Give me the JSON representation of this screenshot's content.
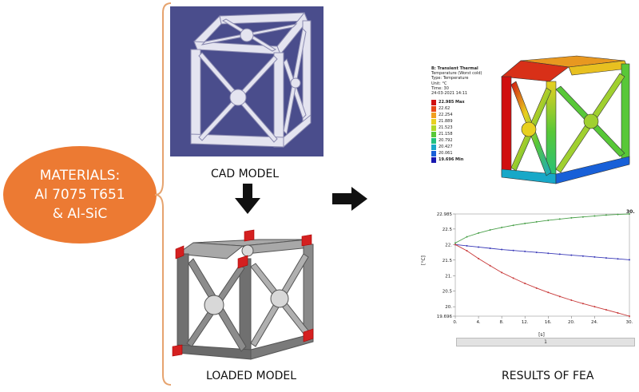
{
  "materials": {
    "line1": "MATERIALS:",
    "line2": "Al 7075 T651",
    "line3": "& Al-SiC"
  },
  "cad_model": {
    "caption": "CAD MODEL"
  },
  "loaded_model": {
    "caption": "LOADED MODEL"
  },
  "results": {
    "caption": "RESULTS OF FEA"
  },
  "colors": {
    "orange": "#ec7a33",
    "brace": "#e6a36e",
    "cad_bg": "#4a4d8c"
  },
  "thermal": {
    "title": "B: Transient Thermal",
    "subtitle": "Temperature (Worst cold)",
    "type": "Type: Temperature",
    "unit": "Unit: °C",
    "time": "Time: 30",
    "date": "24-03-2021 14:11",
    "legend": [
      {
        "label": "22.985 Max",
        "color": "#d01010"
      },
      {
        "label": "22.62",
        "color": "#e84818"
      },
      {
        "label": "22.254",
        "color": "#f0a020"
      },
      {
        "label": "21.889",
        "color": "#e8d020"
      },
      {
        "label": "21.523",
        "color": "#b0d828"
      },
      {
        "label": "21.158",
        "color": "#58c838"
      },
      {
        "label": "20.792",
        "color": "#20c080"
      },
      {
        "label": "20.427",
        "color": "#18a8c8"
      },
      {
        "label": "20.061",
        "color": "#1860d8"
      },
      {
        "label": "19.696 Min",
        "color": "#1818b0"
      }
    ]
  },
  "chart_data": {
    "type": "line",
    "ylabel": "[°C]",
    "xlabel": "[s]",
    "xlim": [
      0,
      30
    ],
    "ylim": [
      19.696,
      22.985
    ],
    "x_ticks": [
      "0.",
      "4.",
      "8.",
      "12.",
      "16.",
      "20.",
      "24.",
      "30."
    ],
    "y_ticks": [
      "22.985",
      "22.5",
      "22.",
      "21.5",
      "21.",
      "20.5",
      "20.",
      "19.696"
    ],
    "end_label": "30.",
    "footer": "1",
    "series": [
      {
        "color": "#4aa04a",
        "x": [
          0,
          2,
          4,
          6,
          8,
          10,
          12,
          14,
          16,
          18,
          20,
          22,
          24,
          26,
          28,
          30
        ],
        "values": [
          22.05,
          22.25,
          22.37,
          22.47,
          22.55,
          22.62,
          22.68,
          22.73,
          22.78,
          22.82,
          22.86,
          22.89,
          22.92,
          22.95,
          22.97,
          22.985
        ]
      },
      {
        "color": "#3a3ab8",
        "x": [
          0,
          2,
          4,
          6,
          8,
          10,
          12,
          14,
          16,
          18,
          20,
          22,
          24,
          26,
          28,
          30
        ],
        "values": [
          22.0,
          21.96,
          21.92,
          21.88,
          21.84,
          21.81,
          21.78,
          21.75,
          21.72,
          21.69,
          21.66,
          21.63,
          21.6,
          21.57,
          21.54,
          21.51
        ]
      },
      {
        "color": "#c83838",
        "x": [
          0,
          2,
          4,
          6,
          8,
          10,
          12,
          14,
          16,
          18,
          20,
          22,
          24,
          26,
          28,
          30
        ],
        "values": [
          22.0,
          21.8,
          21.55,
          21.32,
          21.1,
          20.92,
          20.75,
          20.6,
          20.46,
          20.33,
          20.21,
          20.1,
          20.0,
          19.9,
          19.8,
          19.696
        ]
      }
    ]
  }
}
